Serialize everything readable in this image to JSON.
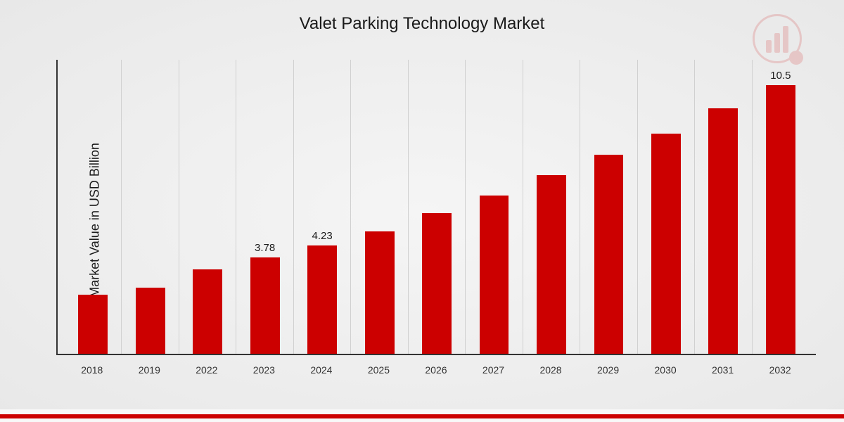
{
  "chart": {
    "type": "bar",
    "title": "Valet Parking Technology Market",
    "title_fontsize": 24,
    "ylabel": "Market Value in USD Billion",
    "ylabel_fontsize": 18,
    "background_gradient": [
      "#f5f5f5",
      "#e8e8e8"
    ],
    "bar_color": "#cc0000",
    "grid_color": "#d0d0d0",
    "axis_color": "#333333",
    "text_color": "#1a1a1a",
    "ymax": 11.5,
    "xlabel_fontsize": 14,
    "datalabel_fontsize": 15,
    "categories": [
      "2018",
      "2019",
      "2022",
      "2023",
      "2024",
      "2025",
      "2026",
      "2027",
      "2028",
      "2029",
      "2030",
      "2031",
      "2032"
    ],
    "values": [
      2.3,
      2.6,
      3.3,
      3.78,
      4.23,
      4.8,
      5.5,
      6.2,
      7.0,
      7.8,
      8.6,
      9.6,
      10.5
    ],
    "shown_labels": {
      "3": "3.78",
      "4": "4.23",
      "12": "10.5"
    },
    "bar_width_pct": 52
  },
  "footer": {
    "accent_color": "#cc0000",
    "bg_color": "#f8f8f8"
  }
}
